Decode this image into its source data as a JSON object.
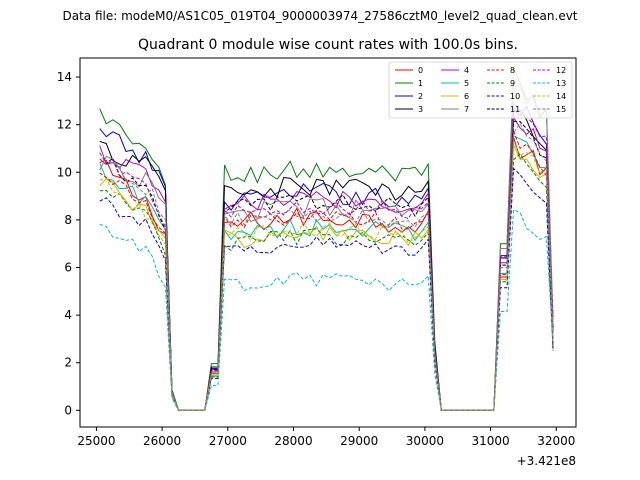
{
  "supertitle": "Data file: modeM0/AS1C05_019T04_9000003974_27586cztM0_level2_quad_clean.evt",
  "chart_data": {
    "type": "line",
    "title": "Quadrant 0 module wise count rates with 100.0s bins.",
    "xlabel": "",
    "ylabel": "",
    "x_offset_label": "+3.421e8",
    "xlim": [
      24750,
      32300
    ],
    "ylim": [
      -0.7,
      14.8
    ],
    "xticks": [
      25000,
      26000,
      27000,
      28000,
      29000,
      30000,
      31000,
      32000
    ],
    "yticks": [
      0,
      2,
      4,
      6,
      8,
      10,
      12,
      14
    ],
    "x_start": 25050,
    "x_step": 100,
    "n_points": 70,
    "segments": [
      {
        "from": 25050,
        "to": 26150,
        "active": true
      },
      {
        "from": 26150,
        "to": 26750,
        "active": false
      },
      {
        "from": 26750,
        "to": 30150,
        "active": true
      },
      {
        "from": 30150,
        "to": 31150,
        "active": false
      },
      {
        "from": 31150,
        "to": 31950,
        "active": true
      }
    ],
    "series": [
      {
        "name": "0",
        "color": "#ff0000",
        "dash": "solid",
        "level1": [
          10.3,
          8.6
        ],
        "level2": 7.8,
        "level3": [
          11.2,
          10.0
        ],
        "amp": 0.45
      },
      {
        "name": "1",
        "color": "#008000",
        "dash": "solid",
        "level1": [
          12.5,
          10.6
        ],
        "level2": 9.8,
        "level3": [
          14.0,
          12.3
        ],
        "amp": 0.45
      },
      {
        "name": "2",
        "color": "#0000ff",
        "dash": "solid",
        "level1": [
          11.6,
          10.5
        ],
        "level2": 8.8,
        "level3": [
          13.0,
          11.6
        ],
        "amp": 0.45
      },
      {
        "name": "3",
        "color": "#000000",
        "dash": "solid",
        "level1": [
          11.0,
          10.3
        ],
        "level2": 9.1,
        "level3": [
          12.8,
          11.2
        ],
        "amp": 0.45
      },
      {
        "name": "4",
        "color": "#bf00bf",
        "dash": "solid",
        "level1": [
          10.8,
          9.8
        ],
        "level2": 8.6,
        "level3": [
          12.4,
          11.0
        ],
        "amp": 0.4
      },
      {
        "name": "5",
        "color": "#00bf9f",
        "dash": "solid",
        "level1": [
          10.0,
          8.6
        ],
        "level2": 7.4,
        "level3": [
          11.5,
          10.2
        ],
        "amp": 0.4
      },
      {
        "name": "6",
        "color": "#bfbf00",
        "dash": "solid",
        "level1": [
          9.8,
          8.2
        ],
        "level2": 7.1,
        "level3": [
          11.0,
          9.8
        ],
        "amp": 0.4
      },
      {
        "name": "7",
        "color": "#7f7f7f",
        "dash": "solid",
        "level1": [
          10.4,
          9.6
        ],
        "level2": 8.2,
        "level3": [
          13.6,
          12.4
        ],
        "amp": 0.4
      },
      {
        "name": "8",
        "color": "#ff0000",
        "dash": "dashed",
        "level1": [
          10.2,
          8.4
        ],
        "level2": 7.8,
        "level3": [
          11.4,
          10.2
        ],
        "amp": 0.35
      },
      {
        "name": "9",
        "color": "#008000",
        "dash": "dashed",
        "level1": [
          9.4,
          8.0
        ],
        "level2": 7.0,
        "level3": [
          10.8,
          9.6
        ],
        "amp": 0.35
      },
      {
        "name": "10",
        "color": "#0000ff",
        "dash": "dashed",
        "level1": [
          8.9,
          7.7
        ],
        "level2": 6.7,
        "level3": [
          10.3,
          8.8
        ],
        "amp": 0.3
      },
      {
        "name": "11",
        "color": "#000000",
        "dash": "dashed",
        "level1": [
          10.9,
          9.0
        ],
        "level2": 8.5,
        "level3": [
          12.2,
          10.6
        ],
        "amp": 0.35
      },
      {
        "name": "12",
        "color": "#bf00bf",
        "dash": "dashed",
        "level1": [
          10.6,
          9.1
        ],
        "level2": 8.3,
        "level3": [
          12.9,
          11.4
        ],
        "amp": 0.35
      },
      {
        "name": "13",
        "color": "#00bfbf",
        "dash": "dashed",
        "level1": [
          7.8,
          6.5
        ],
        "level2": 5.2,
        "level3": [
          8.3,
          7.1
        ],
        "amp": 0.3
      },
      {
        "name": "14",
        "color": "#bfbf00",
        "dash": "dashed",
        "level1": [
          9.6,
          8.3
        ],
        "level2": 7.3,
        "level3": [
          11.0,
          9.9
        ],
        "amp": 0.35
      },
      {
        "name": "15",
        "color": "#7f7f7f",
        "dash": "dashed",
        "level1": [
          10.7,
          9.3
        ],
        "level2": 7.9,
        "level3": [
          12.0,
          10.7
        ],
        "amp": 0.35
      }
    ],
    "legend_placement": "top-right",
    "grid": false
  }
}
